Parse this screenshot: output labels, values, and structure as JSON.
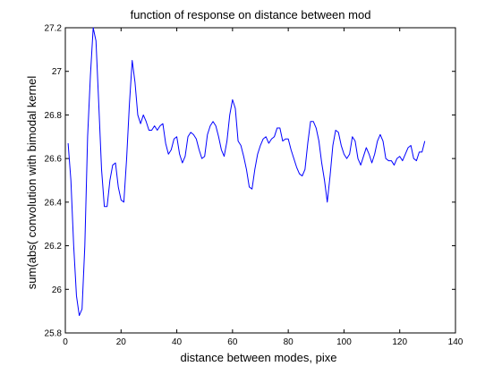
{
  "chart_data": {
    "type": "line",
    "title": "function of response on distance between mod",
    "xlabel": "distance between modes, pixe",
    "ylabel": "sum(abs( convolution with bimodal kernel",
    "xlim": [
      0,
      140
    ],
    "ylim": [
      25.8,
      27.2
    ],
    "xticks": [
      0,
      20,
      40,
      60,
      80,
      100,
      120,
      140
    ],
    "yticks": [
      25.8,
      26,
      26.2,
      26.4,
      26.6,
      26.8,
      27,
      27.2
    ],
    "xtick_labels": [
      "0",
      "20",
      "40",
      "60",
      "80",
      "100",
      "120",
      "140"
    ],
    "ytick_labels": [
      "25.8",
      "26",
      "26.2",
      "26.4",
      "26.6",
      "26.8",
      "27",
      "27.2"
    ],
    "grid": false,
    "series": [
      {
        "color": "#0000ff",
        "x": [
          1,
          2,
          3,
          4,
          5,
          6,
          7,
          8,
          9,
          10,
          11,
          12,
          13,
          14,
          15,
          16,
          17,
          18,
          19,
          20,
          21,
          22,
          23,
          24,
          25,
          26,
          27,
          28,
          29,
          30,
          31,
          32,
          33,
          34,
          35,
          36,
          37,
          38,
          39,
          40,
          41,
          42,
          43,
          44,
          45,
          46,
          47,
          48,
          49,
          50,
          51,
          52,
          53,
          54,
          55,
          56,
          57,
          58,
          59,
          60,
          61,
          62,
          63,
          64,
          65,
          66,
          67,
          68,
          69,
          70,
          71,
          72,
          73,
          74,
          75,
          76,
          77,
          78,
          79,
          80,
          81,
          82,
          83,
          84,
          85,
          86,
          87,
          88,
          89,
          90,
          91,
          92,
          93,
          94,
          95,
          96,
          97,
          98,
          99,
          100,
          101,
          102,
          103,
          104,
          105,
          106,
          107,
          108,
          109,
          110,
          111,
          112,
          113,
          114,
          115,
          116,
          117,
          118,
          119,
          120,
          121,
          122,
          123,
          124,
          125,
          126,
          127,
          128,
          129
        ],
        "values": [
          26.67,
          26.5,
          26.2,
          25.97,
          25.88,
          25.91,
          26.2,
          26.7,
          26.98,
          27.2,
          27.14,
          26.85,
          26.55,
          26.38,
          26.38,
          26.5,
          26.57,
          26.58,
          26.47,
          26.41,
          26.4,
          26.6,
          26.85,
          27.05,
          26.95,
          26.8,
          26.76,
          26.8,
          26.77,
          26.73,
          26.73,
          26.75,
          26.73,
          26.75,
          26.76,
          26.67,
          26.62,
          26.64,
          26.69,
          26.7,
          26.62,
          26.58,
          26.61,
          26.7,
          26.72,
          26.71,
          26.69,
          26.64,
          26.6,
          26.61,
          26.71,
          26.75,
          26.77,
          26.75,
          26.7,
          26.64,
          26.61,
          26.68,
          26.8,
          26.87,
          26.83,
          26.68,
          26.66,
          26.61,
          26.55,
          26.47,
          26.46,
          26.55,
          26.62,
          26.66,
          26.69,
          26.7,
          26.67,
          26.69,
          26.7,
          26.74,
          26.74,
          26.68,
          26.69,
          26.69,
          26.64,
          26.6,
          26.56,
          26.53,
          26.52,
          26.55,
          26.67,
          26.77,
          26.77,
          26.74,
          26.68,
          26.58,
          26.5,
          26.4,
          26.52,
          26.66,
          26.73,
          26.72,
          26.66,
          26.62,
          26.6,
          26.62,
          26.7,
          26.68,
          26.6,
          26.57,
          26.61,
          26.65,
          26.62,
          26.58,
          26.62,
          26.68,
          26.71,
          26.68,
          26.6,
          26.59,
          26.59,
          26.57,
          26.6,
          26.61,
          26.59,
          26.62,
          26.65,
          26.66,
          26.6,
          26.59,
          26.63,
          26.63,
          26.68
        ]
      }
    ]
  }
}
